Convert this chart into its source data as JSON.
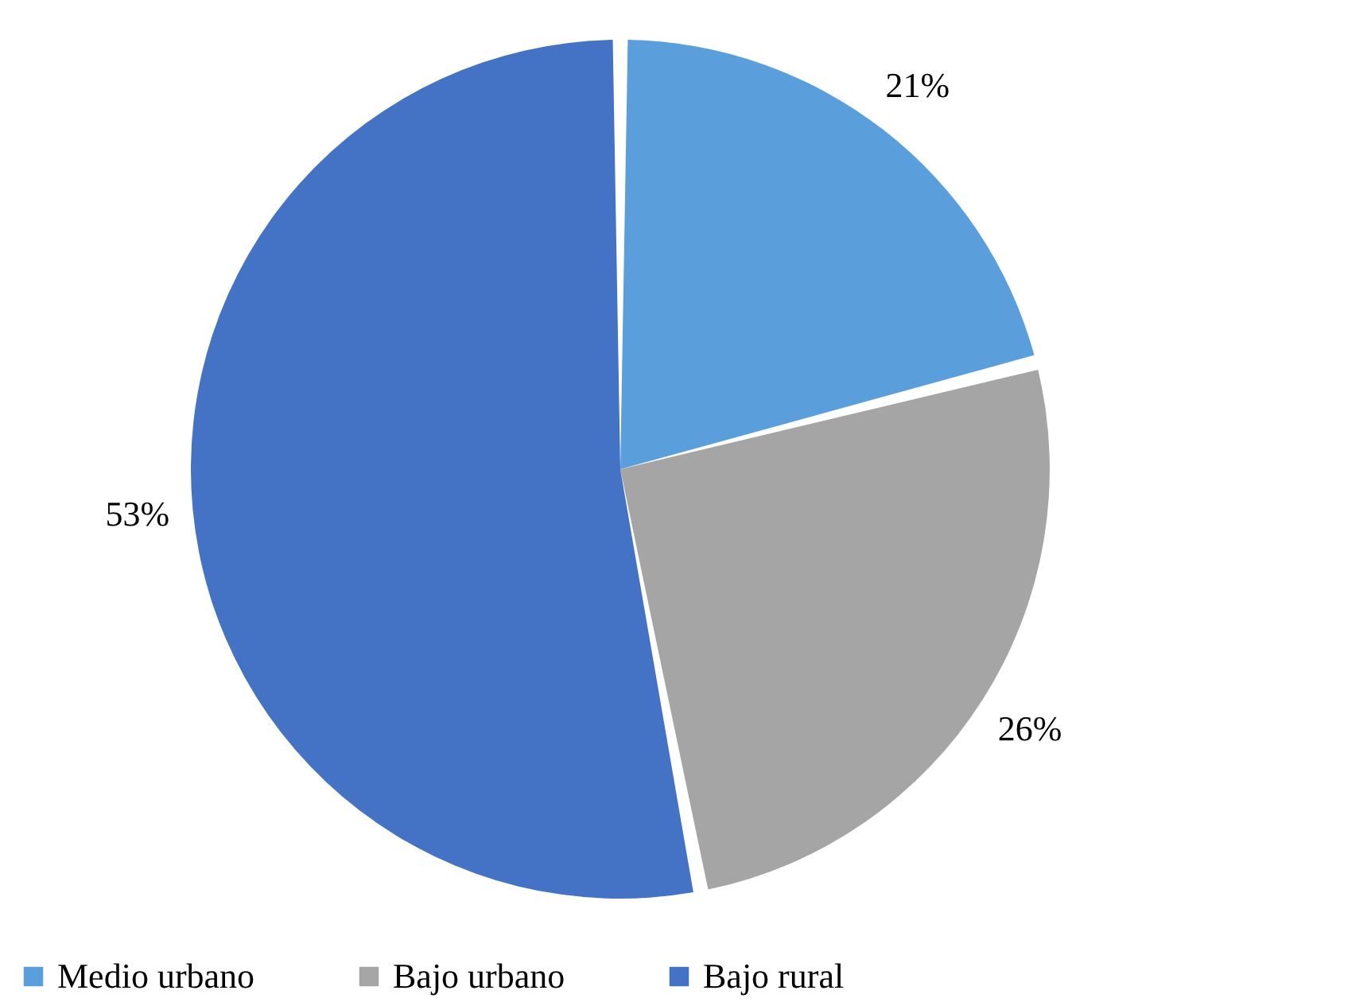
{
  "chart_data": {
    "type": "pie",
    "categories": [
      "Medio urbano",
      "Bajo urbano",
      "Bajo rural"
    ],
    "values": [
      21,
      26,
      53
    ],
    "colors": [
      "#5a9fdc",
      "#a5a5a5",
      "#4472c4"
    ],
    "value_labels": [
      "21%",
      "26%",
      "53%"
    ],
    "legend": "bottom"
  }
}
